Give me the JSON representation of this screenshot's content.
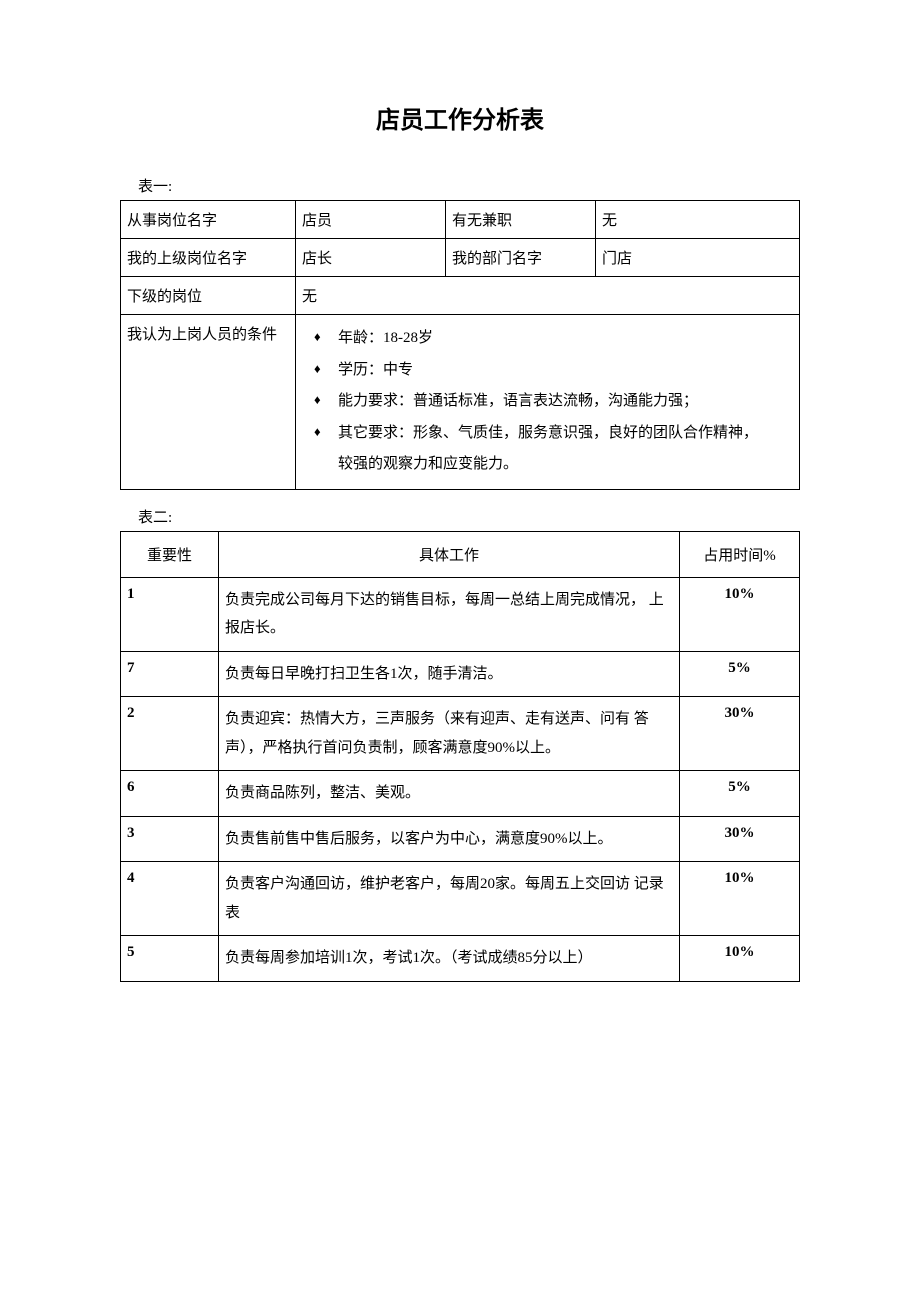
{
  "title": "店员工作分析表",
  "table1": {
    "label": "表一:",
    "rows": {
      "r1": {
        "c1": "从事岗位名字",
        "c2": "店员",
        "c3": "有无兼职",
        "c4": "无"
      },
      "r2": {
        "c1": "我的上级岗位名字",
        "c2": "店长",
        "c3": "我的部门名字",
        "c4": "门店"
      },
      "r3": {
        "c1": "下级的岗位",
        "c2": "无"
      },
      "r4": {
        "c1": "我认为上岗人员的条件",
        "bullets": [
          "年龄：18-28岁",
          "学历：中专",
          "能力要求：普通话标准，语言表达流畅，沟通能力强；",
          "其它要求：形象、气质佳，服务意识强，良好的团队合作精神，"
        ],
        "continuation": "较强的观察力和应变能力。"
      }
    }
  },
  "table2": {
    "label": "表二:",
    "headers": {
      "h1": "重要性",
      "h2": "具体工作",
      "h3": "占用时间%"
    },
    "rows": [
      {
        "importance": "1",
        "task": "负责完成公司每月下达的销售目标，每周一总结上周完成情况，  上报店长。",
        "time": "10%"
      },
      {
        "importance": "7",
        "task": "负责每日早晚打扫卫生各1次，随手清洁。",
        "time": "5%"
      },
      {
        "importance": "2",
        "task": "负责迎宾：热情大方，三声服务（来有迎声、走有送声、问有 答声），严格执行首问负责制，顾客满意度90%以上。",
        "time": "30%"
      },
      {
        "importance": "6",
        "task": "负责商品陈列，整洁、美观。",
        "time": "5%"
      },
      {
        "importance": "3",
        "task": "负责售前售中售后服务，以客户为中心，满意度90%以上。",
        "time": "30%"
      },
      {
        "importance": "4",
        "task": "负责客户沟通回访，维护老客户，每周20家。每周五上交回访 记录表",
        "time": "10%"
      },
      {
        "importance": "5",
        "task": "负责每周参加培训1次，考试1次。（考试成绩85分以上）",
        "time": "10%"
      }
    ]
  }
}
